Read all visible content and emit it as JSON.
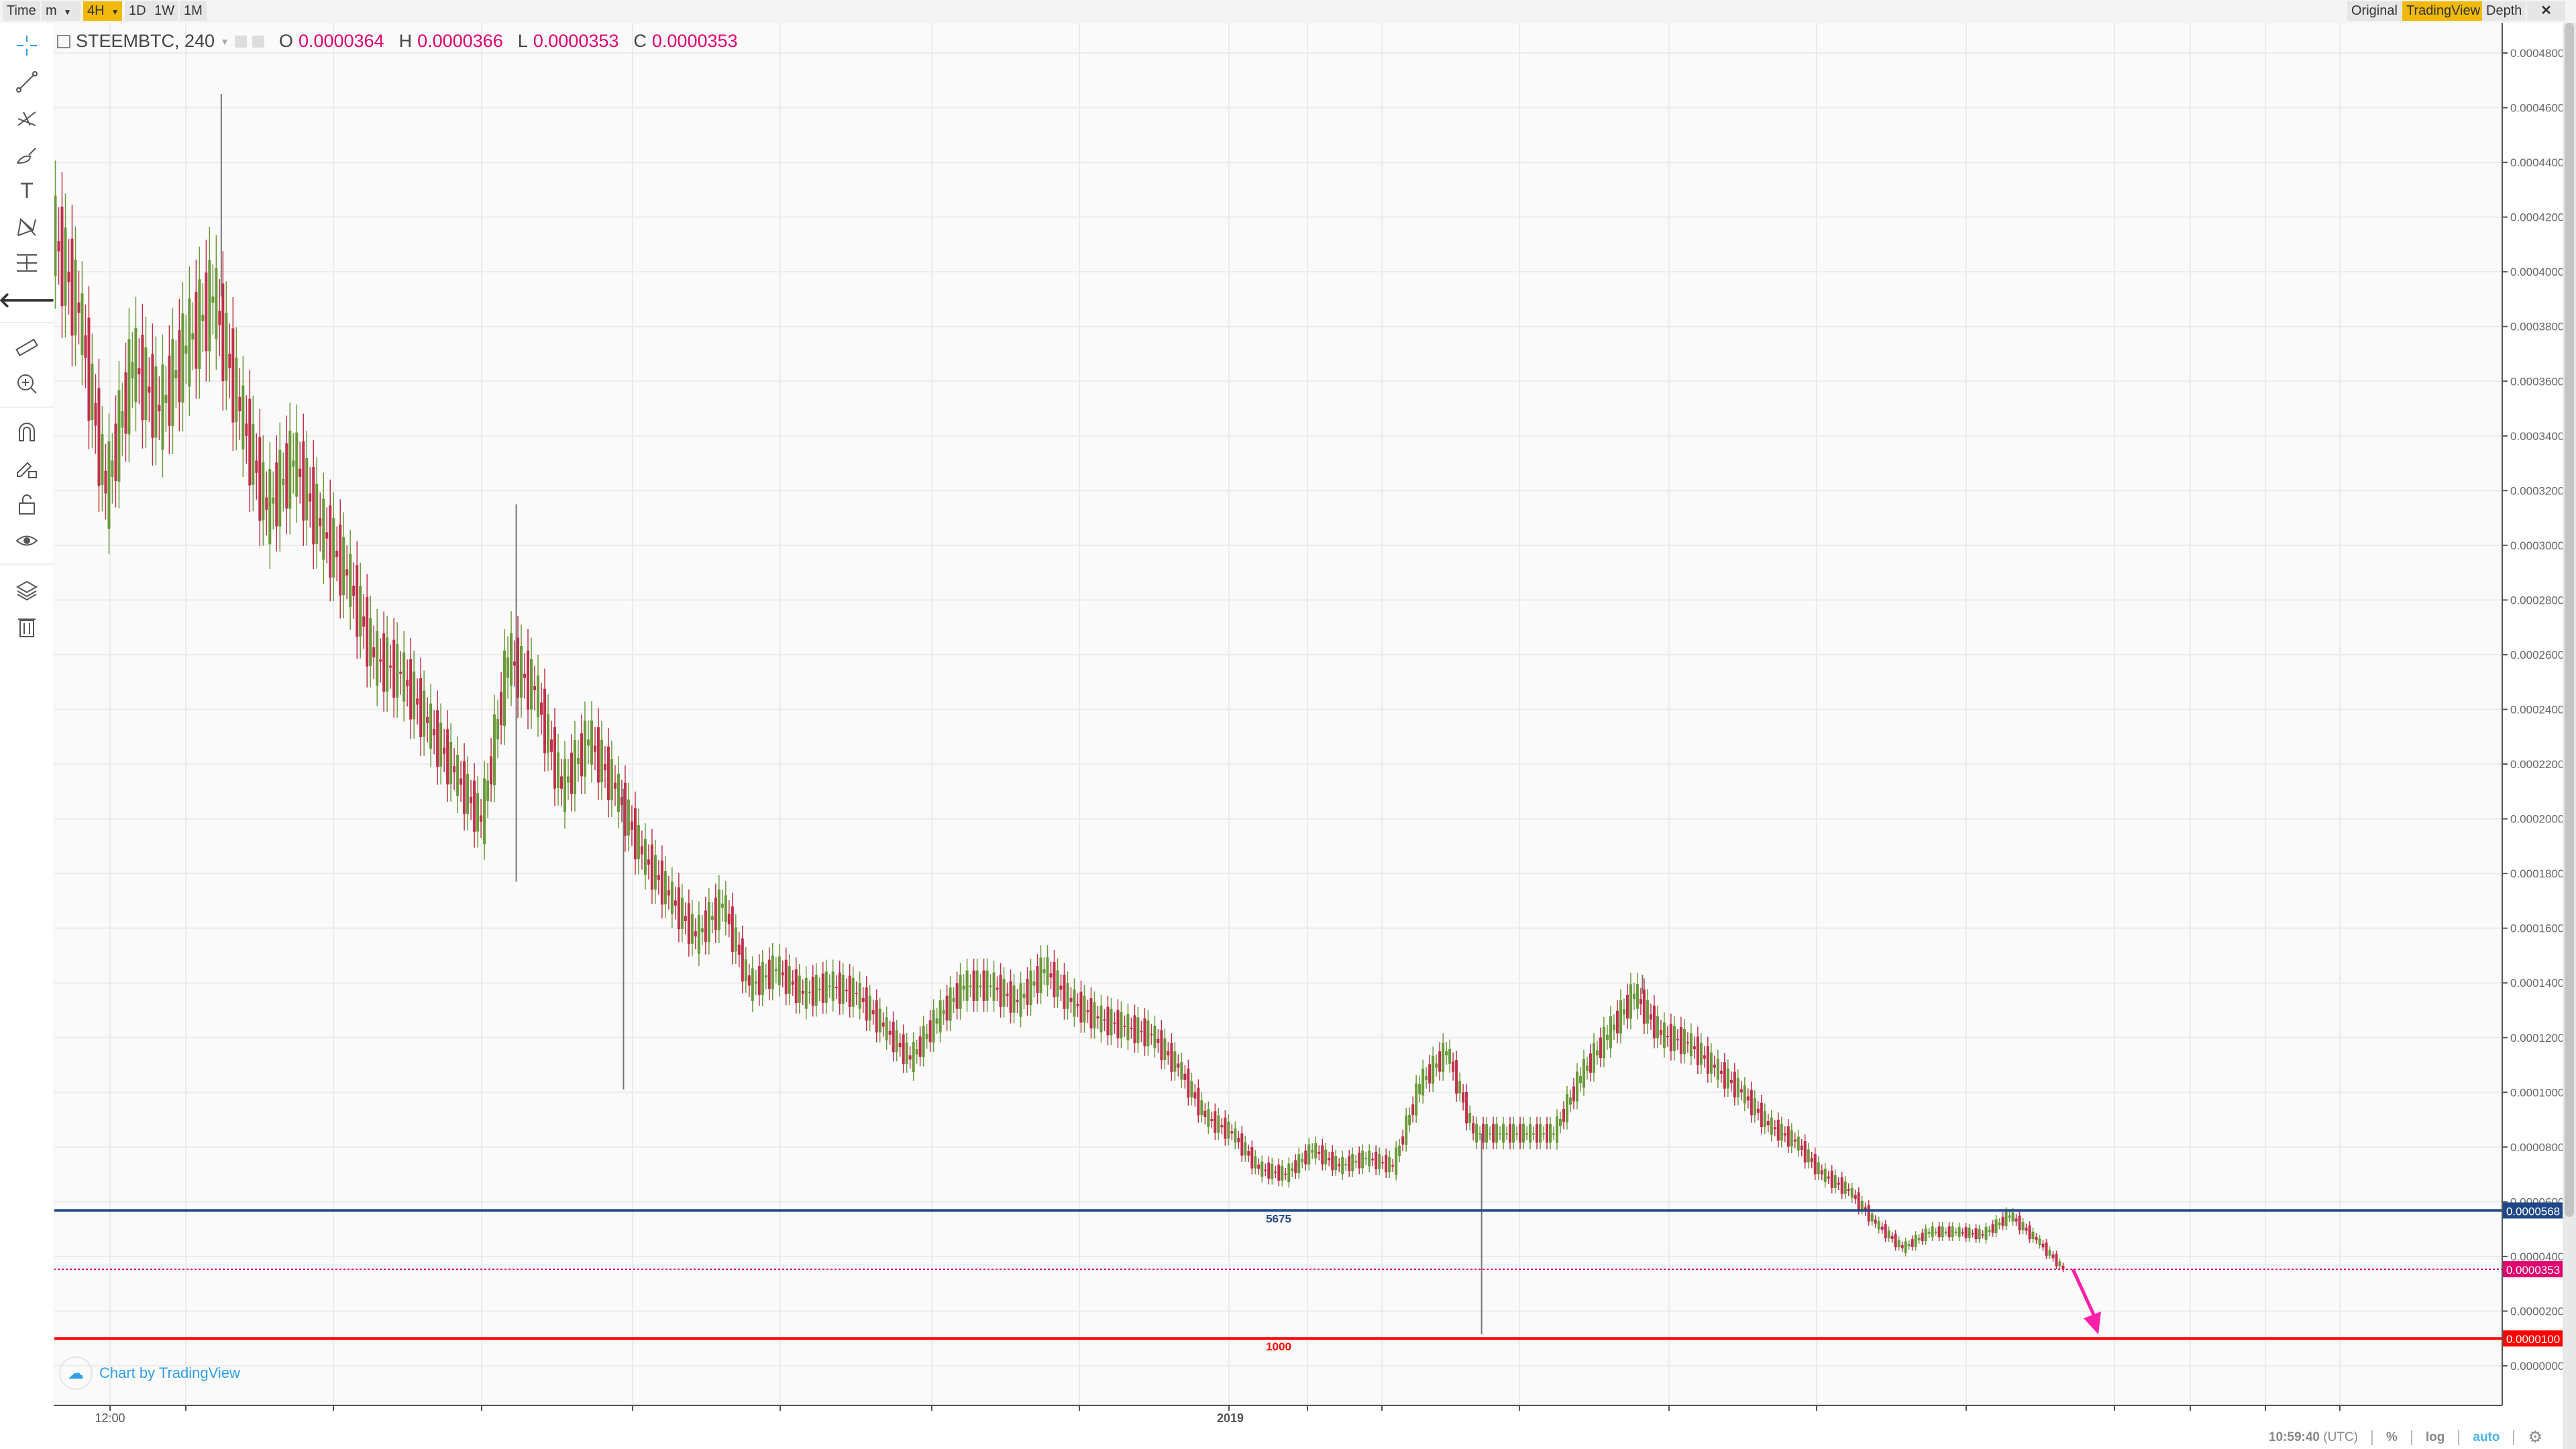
{
  "topbar": {
    "time_label": "Time",
    "minutes_label": "m",
    "interval_active": "4H",
    "intervals": [
      "1D",
      "1W",
      "1M"
    ],
    "views": [
      "Original",
      "TradingView",
      "Depth"
    ],
    "active_view": "TradingView",
    "accent": "#f0b90b"
  },
  "legend": {
    "symbol": "STEEMBTC, 240",
    "open_key": "O",
    "open": "0.0000364",
    "high_key": "H",
    "high": "0.0000366",
    "low_key": "L",
    "low": "0.0000353",
    "close_key": "C",
    "close": "0.0000353"
  },
  "tools": [
    "crosshair-icon",
    "trend-line-icon",
    "pitchfork-icon",
    "brush-icon",
    "text-icon",
    "pattern-icon",
    "measure-range-icon",
    "back-arrow-icon",
    "ruler-icon",
    "zoom-in-icon",
    "magnet-icon",
    "lock-drawing-icon",
    "unlock-icon",
    "eye-icon",
    "layers-icon",
    "trash-icon"
  ],
  "credit": "Chart by TradingView",
  "status": {
    "time": "10:59:40",
    "tz": "(UTC)",
    "percent": "%",
    "log": "log",
    "auto": "auto"
  },
  "chart_data": {
    "type": "candlestick",
    "symbol": "STEEMBTC",
    "interval": "240",
    "ylim": [
      0,
      0.00048
    ],
    "y_ticks": [
      "0.0000000",
      "0.0000200",
      "0.0000400",
      "0.0000600",
      "0.0000800",
      "0.0001000",
      "0.0001200",
      "0.0001400",
      "0.0001600",
      "0.0001800",
      "0.0002000",
      "0.0002200",
      "0.0002400",
      "0.0002600",
      "0.0002800",
      "0.0003000",
      "0.0003200",
      "0.0003400",
      "0.0003600",
      "0.0003800",
      "0.0004000",
      "0.0004200",
      "0.0004400",
      "0.0004600",
      "0.0004800"
    ],
    "x_ticks": [
      "12:00",
      "2019"
    ],
    "grid": true,
    "approx_close_path": [
      0.000415,
      0.000385,
      0.000319,
      0.000367,
      0.000349,
      0.000373,
      0.000391,
      0.000349,
      0.000313,
      0.000331,
      0.000307,
      0.000289,
      0.000259,
      0.000253,
      0.000235,
      0.000217,
      0.000199,
      0.000259,
      0.000247,
      0.000211,
      0.000229,
      0.000211,
      0.000187,
      0.000172,
      0.000157,
      0.000169,
      0.000139,
      0.000145,
      0.000136,
      0.000139,
      0.000136,
      0.000124,
      0.000112,
      0.000127,
      0.000139,
      0.000139,
      0.000133,
      0.000145,
      0.000133,
      0.000127,
      0.000124,
      0.000121,
      0.000109,
      9.1e-05,
      8.5e-05,
      7.2e-05,
      7e-05,
      7.9e-05,
      7.3e-05,
      7.6e-05,
      7.3e-05,
      0.000103,
      0.000115,
      8.5e-05,
      8.5e-05,
      8.5e-05,
      8.5e-05,
      0.000106,
      0.000121,
      0.000136,
      0.000121,
      0.000118,
      0.000109,
      0.0001,
      8.8e-05,
      8.2e-05,
      7e-05,
      6.4e-05,
      5.2e-05,
      4.3e-05,
      4.9e-05,
      4.9e-05,
      4.8e-05,
      5.5e-05,
      4.6e-05,
      3.53e-05
    ],
    "wick_spikes": [
      {
        "after_index": 6,
        "high": 0.000465
      },
      {
        "after_index": 17,
        "high": 0.000315,
        "low": 0.000177
      },
      {
        "after_index": 21,
        "low": 0.000101
      },
      {
        "after_index": 53,
        "low": 1.15e-05
      },
      {
        "after_index": 59,
        "high": 0.000143
      }
    ],
    "horizontal_lines": [
      {
        "price": "0.0000568",
        "value": 5.68e-05,
        "label": "5675",
        "color": "#1f4788"
      },
      {
        "price": "0.0000353",
        "value": 3.53e-05,
        "label": "",
        "color": "#e0006e",
        "style": "dotted"
      },
      {
        "price": "0.0000100",
        "value": 1e-05,
        "label": "1000",
        "color": "#ff0000"
      }
    ],
    "arrow": {
      "color": "#ff1fa8",
      "from_price": 3.53e-05,
      "to_price": 1.15e-05
    },
    "up_color": "#6a9a3a",
    "down_color": "#c0304a"
  }
}
